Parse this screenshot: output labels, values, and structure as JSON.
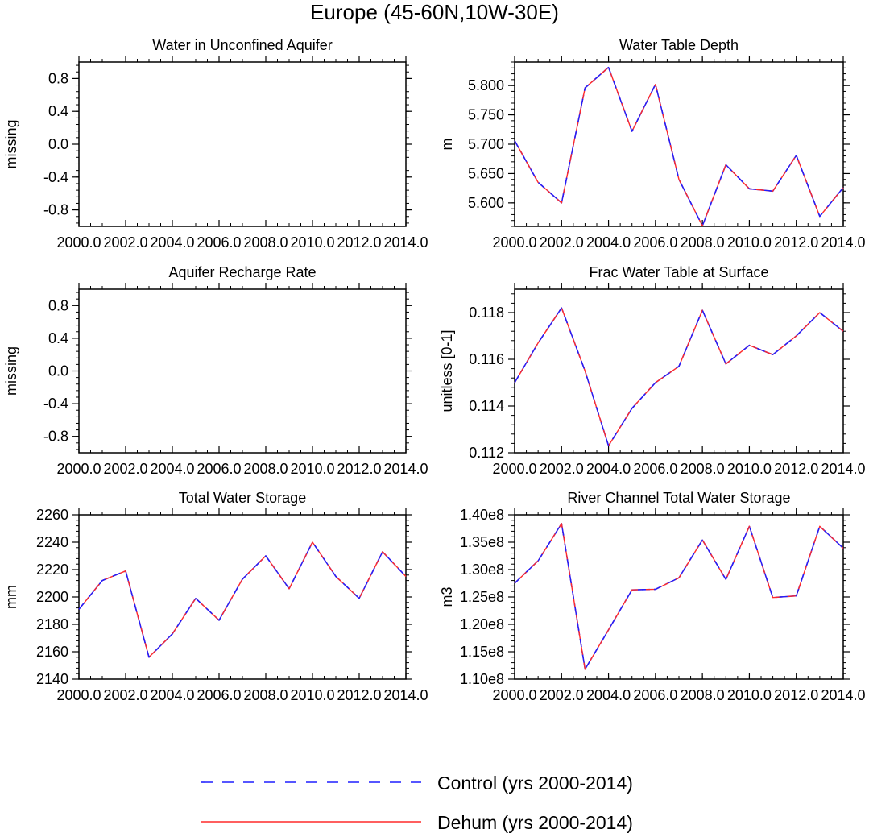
{
  "figure_title": "Europe (45-60N,10W-30E)",
  "colors": {
    "control": "#1f1fff",
    "dehum": "#ff2a2a",
    "frame": "#000000"
  },
  "legend": {
    "items": [
      {
        "label": "Control (yrs 2000-2014)",
        "style": "dashed",
        "color": "#1f1fff"
      },
      {
        "label": "Dehum (yrs 2000-2014)",
        "style": "solid",
        "color": "#ff2a2a"
      }
    ]
  },
  "chart_data": [
    {
      "type": "line",
      "title": "Water in Unconfined Aquifer",
      "ylabel": "missing",
      "xlabel": "",
      "xlim": [
        2000,
        2014
      ],
      "ylim": [
        -1,
        1
      ],
      "xticks": [
        "2000.0",
        "2002.0",
        "2004.0",
        "2006.0",
        "2008.0",
        "2010.0",
        "2012.0",
        "2014.0"
      ],
      "yticks": [
        "0.8",
        "0.4",
        "0.0",
        "-0.4",
        "-0.8"
      ],
      "ytick_values": [
        0.8,
        0.4,
        0.0,
        -0.4,
        -0.8
      ],
      "x": [],
      "series": []
    },
    {
      "type": "line",
      "title": "Water Table Depth",
      "ylabel": "m",
      "xlabel": "",
      "xlim": [
        2000,
        2014
      ],
      "ylim": [
        5.56,
        5.84
      ],
      "xticks": [
        "2000.0",
        "2002.0",
        "2004.0",
        "2006.0",
        "2008.0",
        "2010.0",
        "2012.0",
        "2014.0"
      ],
      "yticks": [
        "5.800",
        "5.750",
        "5.700",
        "5.650",
        "5.600"
      ],
      "ytick_values": [
        5.8,
        5.75,
        5.7,
        5.65,
        5.6
      ],
      "x": [
        2000,
        2001,
        2002,
        2003,
        2004,
        2005,
        2006,
        2007,
        2008,
        2009,
        2010,
        2011,
        2012,
        2013,
        2014
      ],
      "series": [
        {
          "name": "Control (yrs 2000-2014)",
          "values": [
            5.706,
            5.635,
            5.6,
            5.796,
            5.831,
            5.722,
            5.802,
            5.64,
            5.561,
            5.665,
            5.624,
            5.62,
            5.681,
            5.577,
            5.626
          ]
        },
        {
          "name": "Dehum (yrs 2000-2014)",
          "values": [
            5.706,
            5.635,
            5.6,
            5.796,
            5.831,
            5.722,
            5.802,
            5.64,
            5.561,
            5.665,
            5.624,
            5.62,
            5.681,
            5.577,
            5.626
          ]
        }
      ]
    },
    {
      "type": "line",
      "title": "Aquifer Recharge Rate",
      "ylabel": "missing",
      "xlabel": "",
      "xlim": [
        2000,
        2014
      ],
      "ylim": [
        -1,
        1
      ],
      "xticks": [
        "2000.0",
        "2002.0",
        "2004.0",
        "2006.0",
        "2008.0",
        "2010.0",
        "2012.0",
        "2014.0"
      ],
      "yticks": [
        "0.8",
        "0.4",
        "0.0",
        "-0.4",
        "-0.8"
      ],
      "ytick_values": [
        0.8,
        0.4,
        0.0,
        -0.4,
        -0.8
      ],
      "x": [],
      "series": []
    },
    {
      "type": "line",
      "title": "Frac Water Table at Surface",
      "ylabel": "unitless [0-1]",
      "xlabel": "",
      "xlim": [
        2000,
        2014
      ],
      "ylim": [
        0.112,
        0.119
      ],
      "xticks": [
        "2000.0",
        "2002.0",
        "2004.0",
        "2006.0",
        "2008.0",
        "2010.0",
        "2012.0",
        "2014.0"
      ],
      "yticks": [
        "0.118",
        "0.116",
        "0.114",
        "0.112"
      ],
      "ytick_values": [
        0.118,
        0.116,
        0.114,
        0.112
      ],
      "x": [
        2000,
        2001,
        2002,
        2003,
        2004,
        2005,
        2006,
        2007,
        2008,
        2009,
        2010,
        2011,
        2012,
        2013,
        2014
      ],
      "series": [
        {
          "name": "Control (yrs 2000-2014)",
          "values": [
            0.115,
            0.1167,
            0.1182,
            0.1155,
            0.1123,
            0.1139,
            0.115,
            0.1157,
            0.1181,
            0.1158,
            0.1166,
            0.1162,
            0.117,
            0.118,
            0.1172
          ]
        },
        {
          "name": "Dehum (yrs 2000-2014)",
          "values": [
            0.115,
            0.1167,
            0.1182,
            0.1155,
            0.1123,
            0.1139,
            0.115,
            0.1157,
            0.1181,
            0.1158,
            0.1166,
            0.1162,
            0.117,
            0.118,
            0.1172
          ]
        }
      ]
    },
    {
      "type": "line",
      "title": "Total Water Storage",
      "ylabel": "mm",
      "xlabel": "",
      "xlim": [
        2000,
        2014
      ],
      "ylim": [
        2140,
        2260
      ],
      "xticks": [
        "2000.0",
        "2002.0",
        "2004.0",
        "2006.0",
        "2008.0",
        "2010.0",
        "2012.0",
        "2014.0"
      ],
      "yticks": [
        "2260",
        "2240",
        "2220",
        "2200",
        "2180",
        "2160",
        "2140"
      ],
      "ytick_values": [
        2260,
        2240,
        2220,
        2200,
        2180,
        2160,
        2140
      ],
      "x": [
        2000,
        2001,
        2002,
        2003,
        2004,
        2005,
        2006,
        2007,
        2008,
        2009,
        2010,
        2011,
        2012,
        2013,
        2014
      ],
      "series": [
        {
          "name": "Control (yrs 2000-2014)",
          "values": [
            2191,
            2212,
            2219,
            2156,
            2173,
            2199,
            2183,
            2213,
            2230,
            2206,
            2240,
            2215,
            2199,
            2233,
            2215
          ]
        },
        {
          "name": "Dehum (yrs 2000-2014)",
          "values": [
            2191,
            2212,
            2219,
            2156,
            2173,
            2199,
            2183,
            2213,
            2230,
            2206,
            2240,
            2215,
            2199,
            2233,
            2215
          ]
        }
      ]
    },
    {
      "type": "line",
      "title": "River Channel Total Water Storage",
      "ylabel": "m3",
      "xlabel": "",
      "xlim": [
        2000,
        2014
      ],
      "ylim": [
        110000000,
        140000000
      ],
      "xticks": [
        "2000.0",
        "2002.0",
        "2004.0",
        "2006.0",
        "2008.0",
        "2010.0",
        "2012.0",
        "2014.0"
      ],
      "yticks": [
        "1.40e8",
        "1.35e8",
        "1.30e8",
        "1.25e8",
        "1.20e8",
        "1.15e8",
        "1.10e8"
      ],
      "ytick_values": [
        140000000,
        135000000,
        130000000,
        125000000,
        120000000,
        115000000,
        110000000
      ],
      "x": [
        2000,
        2001,
        2002,
        2003,
        2004,
        2005,
        2006,
        2007,
        2008,
        2009,
        2010,
        2011,
        2012,
        2013,
        2014
      ],
      "series": [
        {
          "name": "Control (yrs 2000-2014)",
          "values": [
            127500000,
            131600000,
            138400000,
            111800000,
            119000000,
            126300000,
            126400000,
            128500000,
            135400000,
            128200000,
            137900000,
            124900000,
            125200000,
            137900000,
            133900000
          ]
        },
        {
          "name": "Dehum (yrs 2000-2014)",
          "values": [
            127500000,
            131600000,
            138400000,
            111800000,
            119000000,
            126300000,
            126400000,
            128500000,
            135400000,
            128200000,
            137900000,
            124900000,
            125200000,
            137900000,
            133900000
          ]
        }
      ]
    }
  ]
}
